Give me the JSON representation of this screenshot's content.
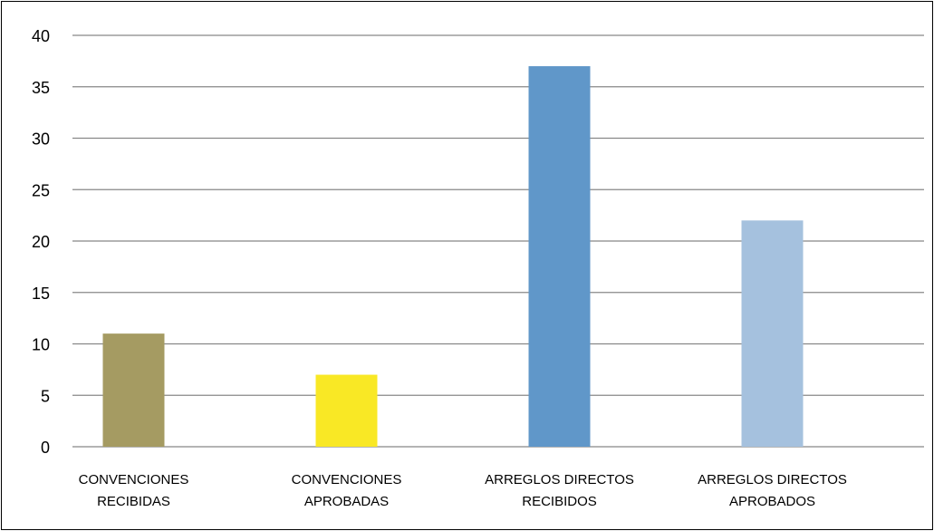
{
  "chart_data": {
    "type": "bar",
    "categories": [
      [
        "CONVENCIONES",
        "RECIBIDAS"
      ],
      [
        "CONVENCIONES",
        "APROBADAS"
      ],
      [
        "ARREGLOS DIRECTOS",
        "RECIBIDOS"
      ],
      [
        "ARREGLOS DIRECTOS",
        "APROBADOS"
      ]
    ],
    "values": [
      11,
      7,
      37,
      22
    ],
    "colors": [
      "#a59b62",
      "#f9e825",
      "#6097c9",
      "#a5c1de"
    ],
    "ylim": [
      0,
      40
    ],
    "yticks": [
      "0",
      "5",
      "10",
      "15",
      "20",
      "25",
      "30",
      "35",
      "40"
    ],
    "grid": true,
    "legend": "none",
    "title": "",
    "xlabel": "",
    "ylabel": ""
  }
}
